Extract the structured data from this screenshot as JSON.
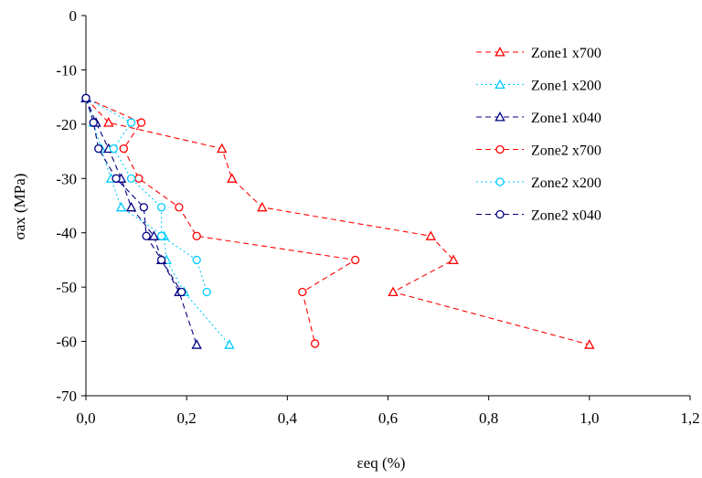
{
  "chart_data": {
    "type": "line",
    "xlabel": "εeq  (%)",
    "ylabel": "σax (MPa)",
    "xlim": [
      0,
      1.2
    ],
    "ylim": [
      -70,
      0
    ],
    "x_ticks": [
      "0,0",
      "0,2",
      "0,4",
      "0,6",
      "0,8",
      "1,0",
      "1,2"
    ],
    "y_ticks": [
      "0",
      "-10",
      "-20",
      "-30",
      "-40",
      "-50",
      "-60",
      "-70"
    ],
    "grid": false,
    "legend_position": "top-right",
    "series": [
      {
        "name": "Zone1 x700",
        "color": "#ff0000",
        "dash": "dashed",
        "marker": "triangle",
        "points": [
          [
            0.0,
            -15.2
          ],
          [
            0.045,
            -19.7
          ],
          [
            0.27,
            -24.5
          ],
          [
            0.29,
            -30.0
          ],
          [
            0.35,
            -35.3
          ],
          [
            0.685,
            -40.6
          ],
          [
            0.73,
            -45.0
          ],
          [
            0.61,
            -50.9
          ],
          [
            1.0,
            -60.6
          ]
        ]
      },
      {
        "name": "Zone1 x200",
        "color": "#00ccff",
        "dash": "dotted",
        "marker": "triangle",
        "points": [
          [
            0.0,
            -15.2
          ],
          [
            0.015,
            -19.7
          ],
          [
            0.03,
            -24.5
          ],
          [
            0.05,
            -30.0
          ],
          [
            0.07,
            -35.3
          ],
          [
            0.155,
            -40.6
          ],
          [
            0.16,
            -45.0
          ],
          [
            0.195,
            -50.9
          ],
          [
            0.285,
            -60.6
          ]
        ]
      },
      {
        "name": "Zone1 x040",
        "color": "#000080",
        "dash": "dashed",
        "marker": "triangle",
        "points": [
          [
            0.0,
            -15.2
          ],
          [
            0.02,
            -19.7
          ],
          [
            0.045,
            -24.5
          ],
          [
            0.07,
            -30.0
          ],
          [
            0.09,
            -35.3
          ],
          [
            0.135,
            -40.6
          ],
          [
            0.15,
            -45.0
          ],
          [
            0.185,
            -50.9
          ],
          [
            0.22,
            -60.6
          ]
        ]
      },
      {
        "name": "Zone2 x700",
        "color": "#ff0000",
        "dash": "dashed",
        "marker": "circle",
        "points": [
          [
            0.0,
            -15.2
          ],
          [
            0.11,
            -19.7
          ],
          [
            0.075,
            -24.5
          ],
          [
            0.105,
            -30.0
          ],
          [
            0.185,
            -35.3
          ],
          [
            0.22,
            -40.6
          ],
          [
            0.535,
            -45.0
          ],
          [
            0.43,
            -50.9
          ],
          [
            0.455,
            -60.4
          ]
        ]
      },
      {
        "name": "Zone2 x200",
        "color": "#00ccff",
        "dash": "dotted",
        "marker": "circle",
        "points": [
          [
            0.0,
            -15.2
          ],
          [
            0.09,
            -19.7
          ],
          [
            0.055,
            -24.5
          ],
          [
            0.09,
            -30.0
          ],
          [
            0.15,
            -35.3
          ],
          [
            0.15,
            -40.6
          ],
          [
            0.22,
            -45.0
          ],
          [
            0.24,
            -50.9
          ]
        ]
      },
      {
        "name": "Zone2 x040",
        "color": "#000080",
        "dash": "dashed",
        "marker": "circle",
        "points": [
          [
            0.0,
            -15.2
          ],
          [
            0.015,
            -19.7
          ],
          [
            0.025,
            -24.5
          ],
          [
            0.06,
            -30.0
          ],
          [
            0.115,
            -35.3
          ],
          [
            0.12,
            -40.6
          ],
          [
            0.15,
            -45.0
          ],
          [
            0.19,
            -50.9
          ]
        ]
      }
    ]
  }
}
